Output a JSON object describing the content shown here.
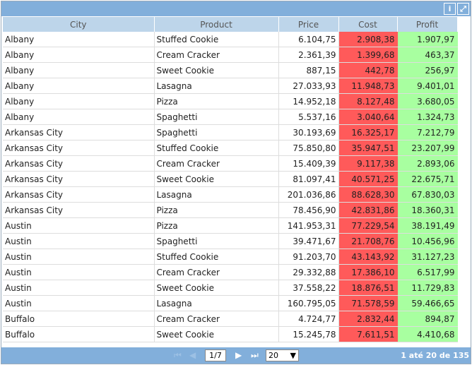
{
  "toolbar": {
    "info_icon": "info-icon",
    "expand_icon": "expand-icon"
  },
  "columns": [
    "City",
    "Product",
    "Price",
    "Cost",
    "Profit"
  ],
  "rows": [
    [
      "Albany",
      "Stuffed Cookie",
      "6.104,75",
      "2.908,38",
      "1.907,97"
    ],
    [
      "Albany",
      "Cream Cracker",
      "2.361,39",
      "1.399,68",
      "463,37"
    ],
    [
      "Albany",
      "Sweet Cookie",
      "887,15",
      "442,78",
      "256,97"
    ],
    [
      "Albany",
      "Lasagna",
      "27.033,93",
      "11.948,73",
      "9.401,01"
    ],
    [
      "Albany",
      "Pizza",
      "14.952,18",
      "8.127,48",
      "3.680,05"
    ],
    [
      "Albany",
      "Spaghetti",
      "5.537,16",
      "3.040,64",
      "1.324,73"
    ],
    [
      "Arkansas City",
      "Spaghetti",
      "30.193,69",
      "16.325,17",
      "7.212,79"
    ],
    [
      "Arkansas City",
      "Stuffed Cookie",
      "75.850,80",
      "35.947,51",
      "23.207,99"
    ],
    [
      "Arkansas City",
      "Cream Cracker",
      "15.409,39",
      "9.117,38",
      "2.893,06"
    ],
    [
      "Arkansas City",
      "Sweet Cookie",
      "81.097,41",
      "40.571,25",
      "22.675,71"
    ],
    [
      "Arkansas City",
      "Lasagna",
      "201.036,86",
      "88.628,30",
      "67.830,03"
    ],
    [
      "Arkansas City",
      "Pizza",
      "78.456,90",
      "42.831,86",
      "18.360,31"
    ],
    [
      "Austin",
      "Pizza",
      "141.953,31",
      "77.229,54",
      "38.191,49"
    ],
    [
      "Austin",
      "Spaghetti",
      "39.471,67",
      "21.708,76",
      "10.456,96"
    ],
    [
      "Austin",
      "Stuffed Cookie",
      "91.203,70",
      "43.143,92",
      "31.127,23"
    ],
    [
      "Austin",
      "Cream Cracker",
      "29.332,88",
      "17.386,10",
      "6.517,99"
    ],
    [
      "Austin",
      "Sweet Cookie",
      "37.558,22",
      "18.876,51",
      "11.729,83"
    ],
    [
      "Austin",
      "Lasagna",
      "160.795,05",
      "71.578,59",
      "59.466,65"
    ],
    [
      "Buffalo",
      "Cream Cracker",
      "4.724,77",
      "2.832,44",
      "894,87"
    ],
    [
      "Buffalo",
      "Sweet Cookie",
      "15.245,78",
      "7.611,51",
      "4.410,68"
    ]
  ],
  "colors": {
    "cost": "#ff5a5a",
    "profit": "#a8ffa0",
    "bar": "#82afdb"
  },
  "pager": {
    "page": "1/7",
    "page_size": "20",
    "info": "1 até 20 de 135"
  }
}
